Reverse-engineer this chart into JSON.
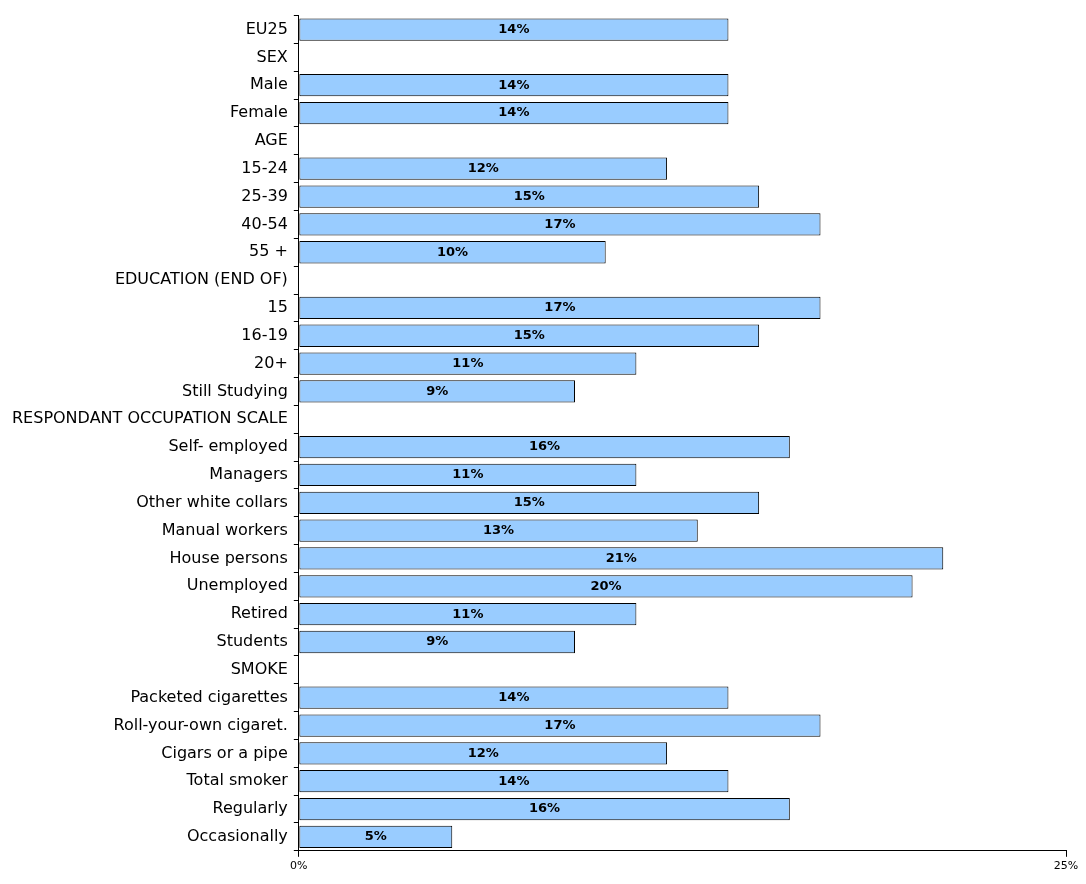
{
  "chart_data": {
    "type": "bar",
    "orientation": "horizontal",
    "categories": [
      "EU25",
      "SEX",
      "Male",
      "Female",
      "AGE",
      "15-24",
      "25-39",
      "40-54",
      "55 +",
      "EDUCATION (END OF)",
      "15",
      "16-19",
      "20+",
      "Still Studying",
      "RESPONDANT OCCUPATION SCALE",
      "Self- employed",
      "Managers",
      "Other white collars",
      "Manual workers",
      "House persons",
      "Unemployed",
      "Retired",
      "Students",
      "SMOKE",
      "Packeted cigarettes",
      "Roll-your-own cigaret.",
      "Cigars or a pipe",
      "Total smoker",
      "Regularly",
      "Occasionally"
    ],
    "values": [
      14,
      null,
      14,
      14,
      null,
      12,
      15,
      17,
      10,
      null,
      17,
      15,
      11,
      9,
      null,
      16,
      11,
      15,
      13,
      21,
      20,
      11,
      9,
      null,
      14,
      17,
      12,
      14,
      16,
      5
    ],
    "value_labels": [
      "14%",
      null,
      "14%",
      "14%",
      null,
      "12%",
      "15%",
      "17%",
      "10%",
      null,
      "17%",
      "15%",
      "11%",
      "9%",
      null,
      "16%",
      "11%",
      "15%",
      "13%",
      "21%",
      "20%",
      "11%",
      "9%",
      null,
      "14%",
      "17%",
      "12%",
      "14%",
      "16%",
      "5%"
    ],
    "color": "#99ccff",
    "xlim": [
      0,
      25
    ],
    "xticks": [
      {
        "value": 0,
        "label": "0%"
      },
      {
        "value": 25,
        "label": "25%"
      }
    ],
    "legend": false
  }
}
